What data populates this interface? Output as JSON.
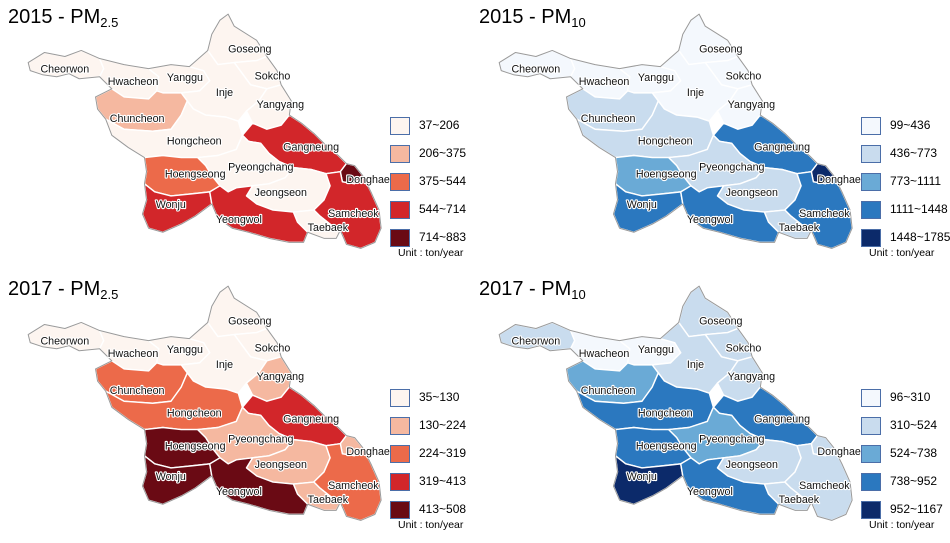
{
  "unit_label": "Unit : ton/year",
  "panels": [
    {
      "year": "2015",
      "pollutant": "PM",
      "subscript": "2.5",
      "legend": [
        {
          "range": "37~206",
          "color": "#fdf5f0"
        },
        {
          "range": "206~375",
          "color": "#f5b8a0"
        },
        {
          "range": "375~544",
          "color": "#ec6a4a"
        },
        {
          "range": "544~714",
          "color": "#d2262a"
        },
        {
          "range": "714~883",
          "color": "#6a0a14"
        }
      ],
      "regions": {
        "Cheorwon": "#fdf5f0",
        "Hwacheon": "#fdf5f0",
        "Yanggu": "#fdf5f0",
        "Inje": "#fdf5f0",
        "Goseong": "#fdf5f0",
        "Sokcho": "#fdf5f0",
        "Yangyang": "#fdf5f0",
        "Chuncheon": "#f5b8a0",
        "Hongcheon": "#fdf5f0",
        "Gangneung": "#d2262a",
        "Donghae": "#6a0a14",
        "Pyeongchang": "#fdf5f0",
        "Hoengseong": "#ec6a4a",
        "Wonju": "#d2262a",
        "Jeongseon": "#fdf5f0",
        "Samcheok": "#d2262a",
        "Taebaek": "#fdf5f0",
        "Yeongwol": "#d2262a"
      }
    },
    {
      "year": "2015",
      "pollutant": "PM",
      "subscript": "10",
      "legend": [
        {
          "range": "99~436",
          "color": "#f4f8fd"
        },
        {
          "range": "436~773",
          "color": "#c9dcee"
        },
        {
          "range": "773~1111",
          "color": "#6aaad6"
        },
        {
          "range": "1111~1448",
          "color": "#2b78bf"
        },
        {
          "range": "1448~1785",
          "color": "#0c2a6a"
        }
      ],
      "regions": {
        "Cheorwon": "#f4f8fd",
        "Hwacheon": "#f4f8fd",
        "Yanggu": "#f4f8fd",
        "Inje": "#f4f8fd",
        "Goseong": "#f4f8fd",
        "Sokcho": "#f4f8fd",
        "Yangyang": "#f4f8fd",
        "Chuncheon": "#c9dcee",
        "Hongcheon": "#c9dcee",
        "Gangneung": "#2b78bf",
        "Donghae": "#0c2a6a",
        "Pyeongchang": "#c9dcee",
        "Hoengseong": "#6aaad6",
        "Wonju": "#2b78bf",
        "Jeongseon": "#c9dcee",
        "Samcheok": "#2b78bf",
        "Taebaek": "#c9dcee",
        "Yeongwol": "#2b78bf"
      }
    },
    {
      "year": "2017",
      "pollutant": "PM",
      "subscript": "2.5",
      "legend": [
        {
          "range": "35~130",
          "color": "#fdf5f0"
        },
        {
          "range": "130~224",
          "color": "#f5b8a0"
        },
        {
          "range": "224~319",
          "color": "#ec6a4a"
        },
        {
          "range": "319~413",
          "color": "#d2262a"
        },
        {
          "range": "413~508",
          "color": "#6a0a14"
        }
      ],
      "regions": {
        "Cheorwon": "#fdf5f0",
        "Hwacheon": "#fdf5f0",
        "Yanggu": "#fdf5f0",
        "Inje": "#fdf5f0",
        "Goseong": "#fdf5f0",
        "Sokcho": "#fdf5f0",
        "Yangyang": "#f5b8a0",
        "Chuncheon": "#ec6a4a",
        "Hongcheon": "#ec6a4a",
        "Gangneung": "#d2262a",
        "Donghae": "#f5b8a0",
        "Pyeongchang": "#f5b8a0",
        "Hoengseong": "#6a0a14",
        "Wonju": "#6a0a14",
        "Jeongseon": "#f5b8a0",
        "Samcheok": "#ec6a4a",
        "Taebaek": "#f5b8a0",
        "Yeongwol": "#6a0a14"
      }
    },
    {
      "year": "2017",
      "pollutant": "PM",
      "subscript": "10",
      "legend": [
        {
          "range": "96~310",
          "color": "#f4f8fd"
        },
        {
          "range": "310~524",
          "color": "#c9dcee"
        },
        {
          "range": "524~738",
          "color": "#6aaad6"
        },
        {
          "range": "738~952",
          "color": "#2b78bf"
        },
        {
          "range": "952~1167",
          "color": "#0c2a6a"
        }
      ],
      "regions": {
        "Cheorwon": "#c9dcee",
        "Hwacheon": "#f4f8fd",
        "Yanggu": "#f4f8fd",
        "Inje": "#c9dcee",
        "Goseong": "#c9dcee",
        "Sokcho": "#c9dcee",
        "Yangyang": "#c9dcee",
        "Chuncheon": "#6aaad6",
        "Hongcheon": "#2b78bf",
        "Gangneung": "#2b78bf",
        "Donghae": "#c9dcee",
        "Pyeongchang": "#6aaad6",
        "Hoengseong": "#2b78bf",
        "Wonju": "#0c2a6a",
        "Jeongseon": "#c9dcee",
        "Samcheok": "#c9dcee",
        "Taebaek": "#c9dcee",
        "Yeongwol": "#2b78bf"
      }
    }
  ]
}
